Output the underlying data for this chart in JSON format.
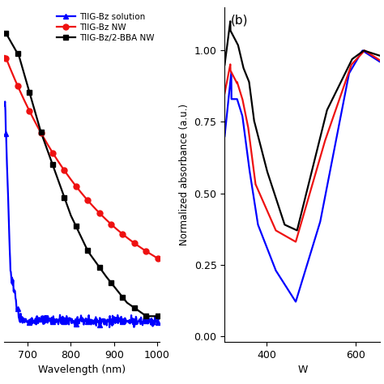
{
  "left_panel": {
    "xlabel": "Wavelength (nm)",
    "xlim": [
      645,
      1005
    ],
    "xticks": [
      700,
      800,
      900,
      1000
    ],
    "ylim": [
      -0.03,
      1.08
    ],
    "title": ""
  },
  "right_panel": {
    "xlabel": "W",
    "ylabel": "Normalized absorbance (a.u.)",
    "xlim": [
      305,
      655
    ],
    "xticks": [
      400,
      600
    ],
    "ylim": [
      -0.02,
      1.15
    ],
    "yticks": [
      0.0,
      0.25,
      0.5,
      0.75,
      1.0
    ],
    "label": "(b)"
  },
  "series": {
    "blue": {
      "label": "TIIG-Bz solution",
      "color": "#0000ff",
      "marker": "^",
      "markersize": 5
    },
    "red": {
      "label": "TIIG-Bz NW",
      "color": "#ee1111",
      "marker": "o",
      "markersize": 5
    },
    "black": {
      "label": "TIIG-Bz/2-BBA NW",
      "color": "#000000",
      "marker": "s",
      "markersize": 5
    }
  },
  "linewidth": 1.6,
  "background": "#ffffff"
}
